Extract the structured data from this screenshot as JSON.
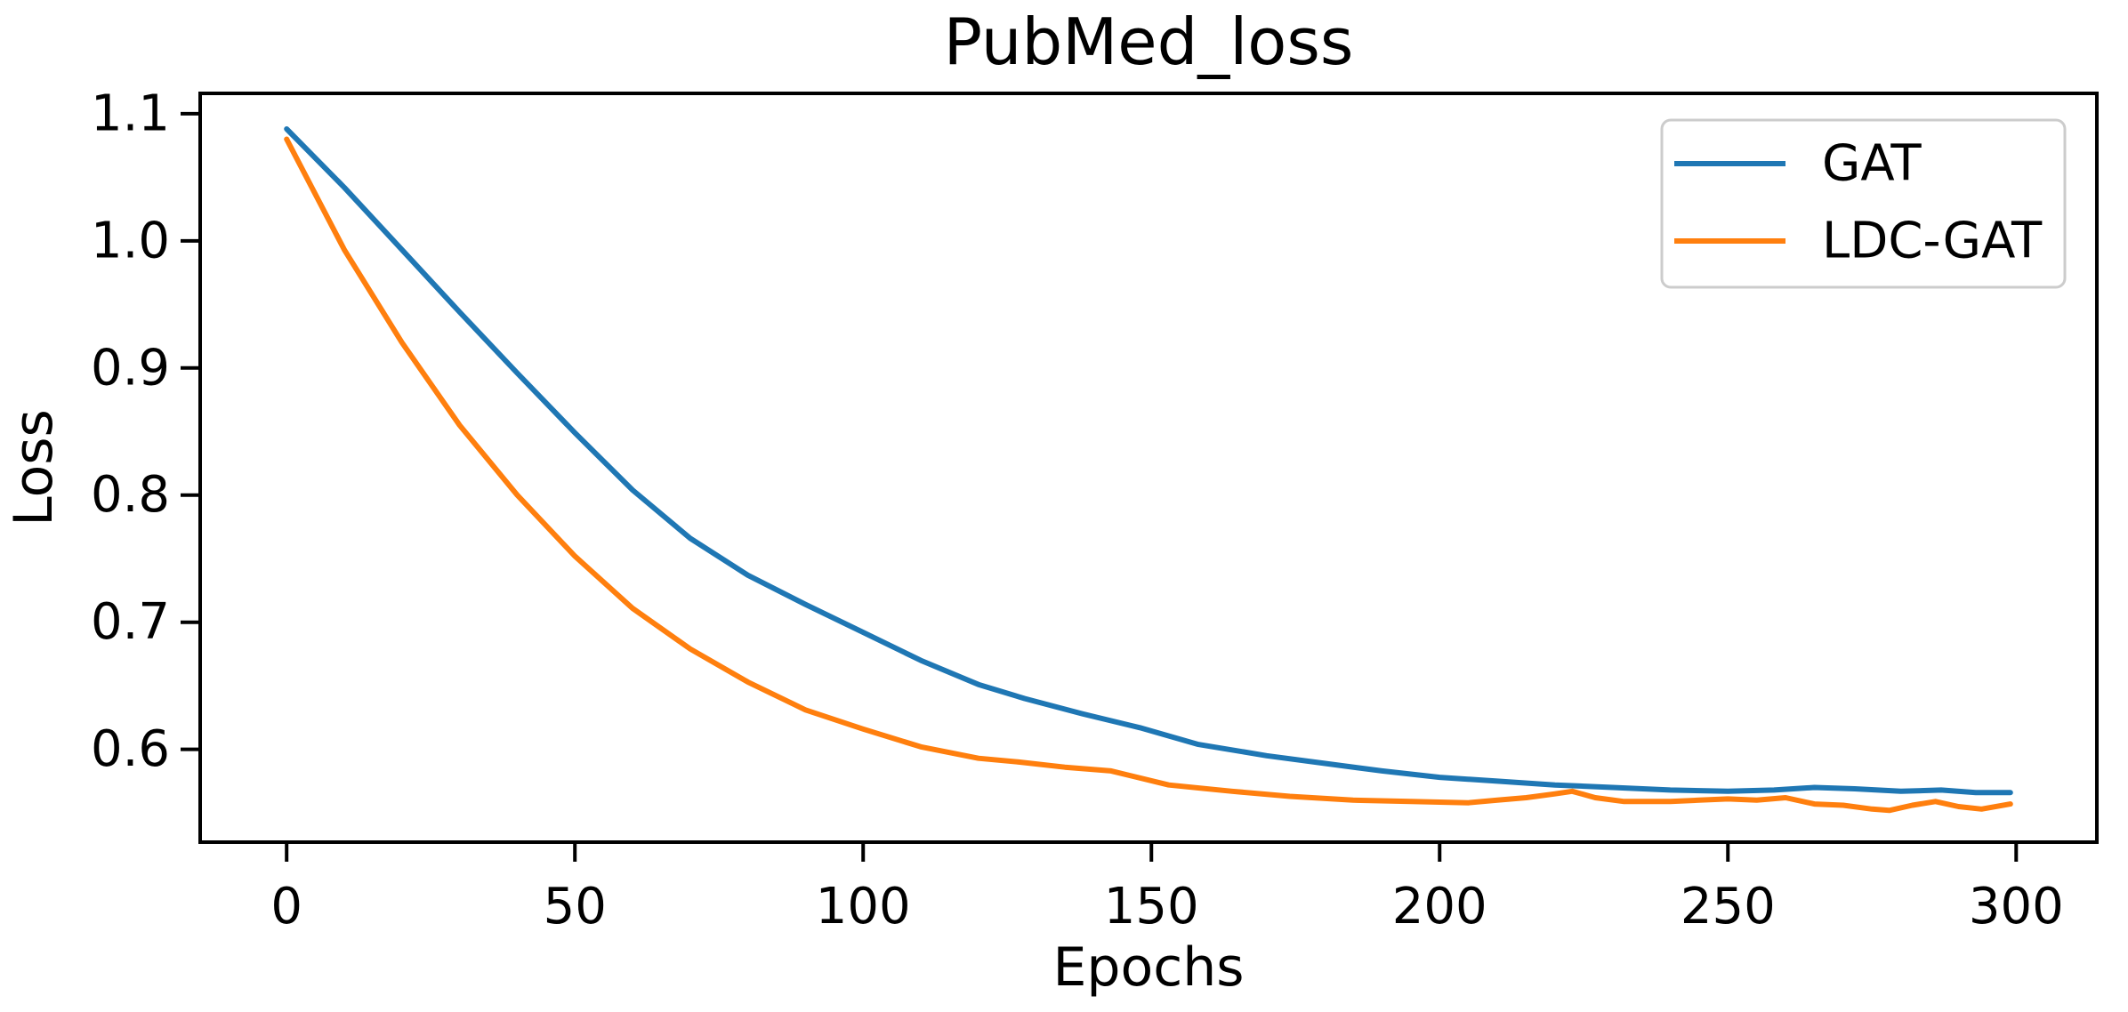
{
  "chart_data": {
    "type": "line",
    "title": "PubMed_loss",
    "xlabel": "Epochs",
    "ylabel": "Loss",
    "xlim": [
      -15,
      314
    ],
    "ylim": [
      0.527,
      1.116
    ],
    "x_ticks": [
      0,
      50,
      100,
      150,
      200,
      250,
      300
    ],
    "y_ticks": [
      0.6,
      0.7,
      0.8,
      0.9,
      1.0,
      1.1
    ],
    "grid": false,
    "legend_position": "upper right",
    "axis_color": "#000000",
    "legend_border_color": "#cccccc",
    "legend_background": "#ffffff",
    "series": [
      {
        "name": "GAT",
        "color": "#1f77b4",
        "x": [
          0,
          10,
          20,
          30,
          40,
          50,
          60,
          70,
          80,
          90,
          100,
          110,
          120,
          128,
          138,
          148,
          158,
          170,
          180,
          190,
          200,
          210,
          220,
          230,
          240,
          250,
          258,
          265,
          272,
          280,
          287,
          293,
          299
        ],
        "y": [
          1.088,
          1.042,
          0.993,
          0.944,
          0.896,
          0.849,
          0.804,
          0.766,
          0.737,
          0.714,
          0.692,
          0.67,
          0.651,
          0.64,
          0.628,
          0.617,
          0.604,
          0.595,
          0.589,
          0.583,
          0.578,
          0.575,
          0.572,
          0.57,
          0.568,
          0.567,
          0.568,
          0.57,
          0.569,
          0.567,
          0.568,
          0.566,
          0.566
        ]
      },
      {
        "name": "LDC-GAT",
        "color": "#ff7f0e",
        "x": [
          0,
          10,
          20,
          30,
          40,
          50,
          60,
          70,
          80,
          90,
          100,
          110,
          120,
          127,
          135,
          143,
          153,
          164,
          174,
          185,
          195,
          205,
          210,
          215,
          220,
          223,
          227,
          232,
          240,
          245,
          250,
          255,
          260,
          265,
          270,
          275,
          278,
          282,
          286,
          290,
          294,
          299
        ],
        "y": [
          1.08,
          0.993,
          0.92,
          0.855,
          0.8,
          0.752,
          0.711,
          0.679,
          0.653,
          0.631,
          0.616,
          0.602,
          0.593,
          0.59,
          0.586,
          0.583,
          0.572,
          0.567,
          0.563,
          0.56,
          0.559,
          0.558,
          0.56,
          0.562,
          0.565,
          0.567,
          0.562,
          0.559,
          0.559,
          0.56,
          0.561,
          0.56,
          0.562,
          0.557,
          0.556,
          0.553,
          0.552,
          0.556,
          0.559,
          0.555,
          0.553,
          0.557
        ]
      }
    ]
  }
}
